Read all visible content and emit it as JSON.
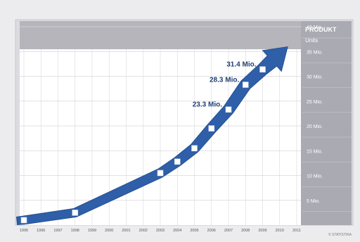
{
  "chart_data": {
    "type": "line",
    "title": "",
    "xlabel": "",
    "ylabel": "",
    "legend_header": [
      "PRODUKT",
      "Units"
    ],
    "x_categories": [
      "1995",
      "1996",
      "1997",
      "1998",
      "1999",
      "2000",
      "2001",
      "2002",
      "2003",
      "2004",
      "2005",
      "2006",
      "2007",
      "2008",
      "2009",
      "2010",
      "2011"
    ],
    "ylim": [
      0,
      40
    ],
    "y_ticks": [
      {
        "value": 5,
        "label": "5 Mio."
      },
      {
        "value": 10,
        "label": "10 Mio."
      },
      {
        "value": 15,
        "label": "15 Mio."
      },
      {
        "value": 20,
        "label": "20 Mio."
      },
      {
        "value": 25,
        "label": "25 Mio."
      },
      {
        "value": 30,
        "label": "30 Mio."
      },
      {
        "value": 35,
        "label": "35 Mio."
      },
      {
        "value": 40,
        "label": "40 Mio."
      }
    ],
    "series": [
      {
        "points": [
          {
            "x": "1995",
            "y": 1.0
          },
          {
            "x": "1998",
            "y": 2.5
          },
          {
            "x": "2003",
            "y": 10.5
          },
          {
            "x": "2004",
            "y": 12.8
          },
          {
            "x": "2005",
            "y": 15.5
          },
          {
            "x": "2006",
            "y": 19.5
          },
          {
            "x": "2007",
            "y": 23.3
          },
          {
            "x": "2008",
            "y": 28.3
          },
          {
            "x": "2009",
            "y": 31.4
          }
        ]
      }
    ],
    "annotations": [
      {
        "x": "2007",
        "y": 23.3,
        "text": "23.3 Mio."
      },
      {
        "x": "2008",
        "y": 28.3,
        "text": "28.3 Mio."
      },
      {
        "x": "2009",
        "y": 31.4,
        "text": "31.4 Mio."
      }
    ],
    "grid": true,
    "colors": {
      "arrow": "#2e5fa8",
      "arrow_dark": "#1f4a8c",
      "header_band": "#b5b5bb",
      "legend_column": "#a9aab2",
      "plot_background": "#ffffff",
      "grid": "#d8d8dc",
      "page_background": "#ececee"
    },
    "footer_note": "© STATISTIKA"
  }
}
